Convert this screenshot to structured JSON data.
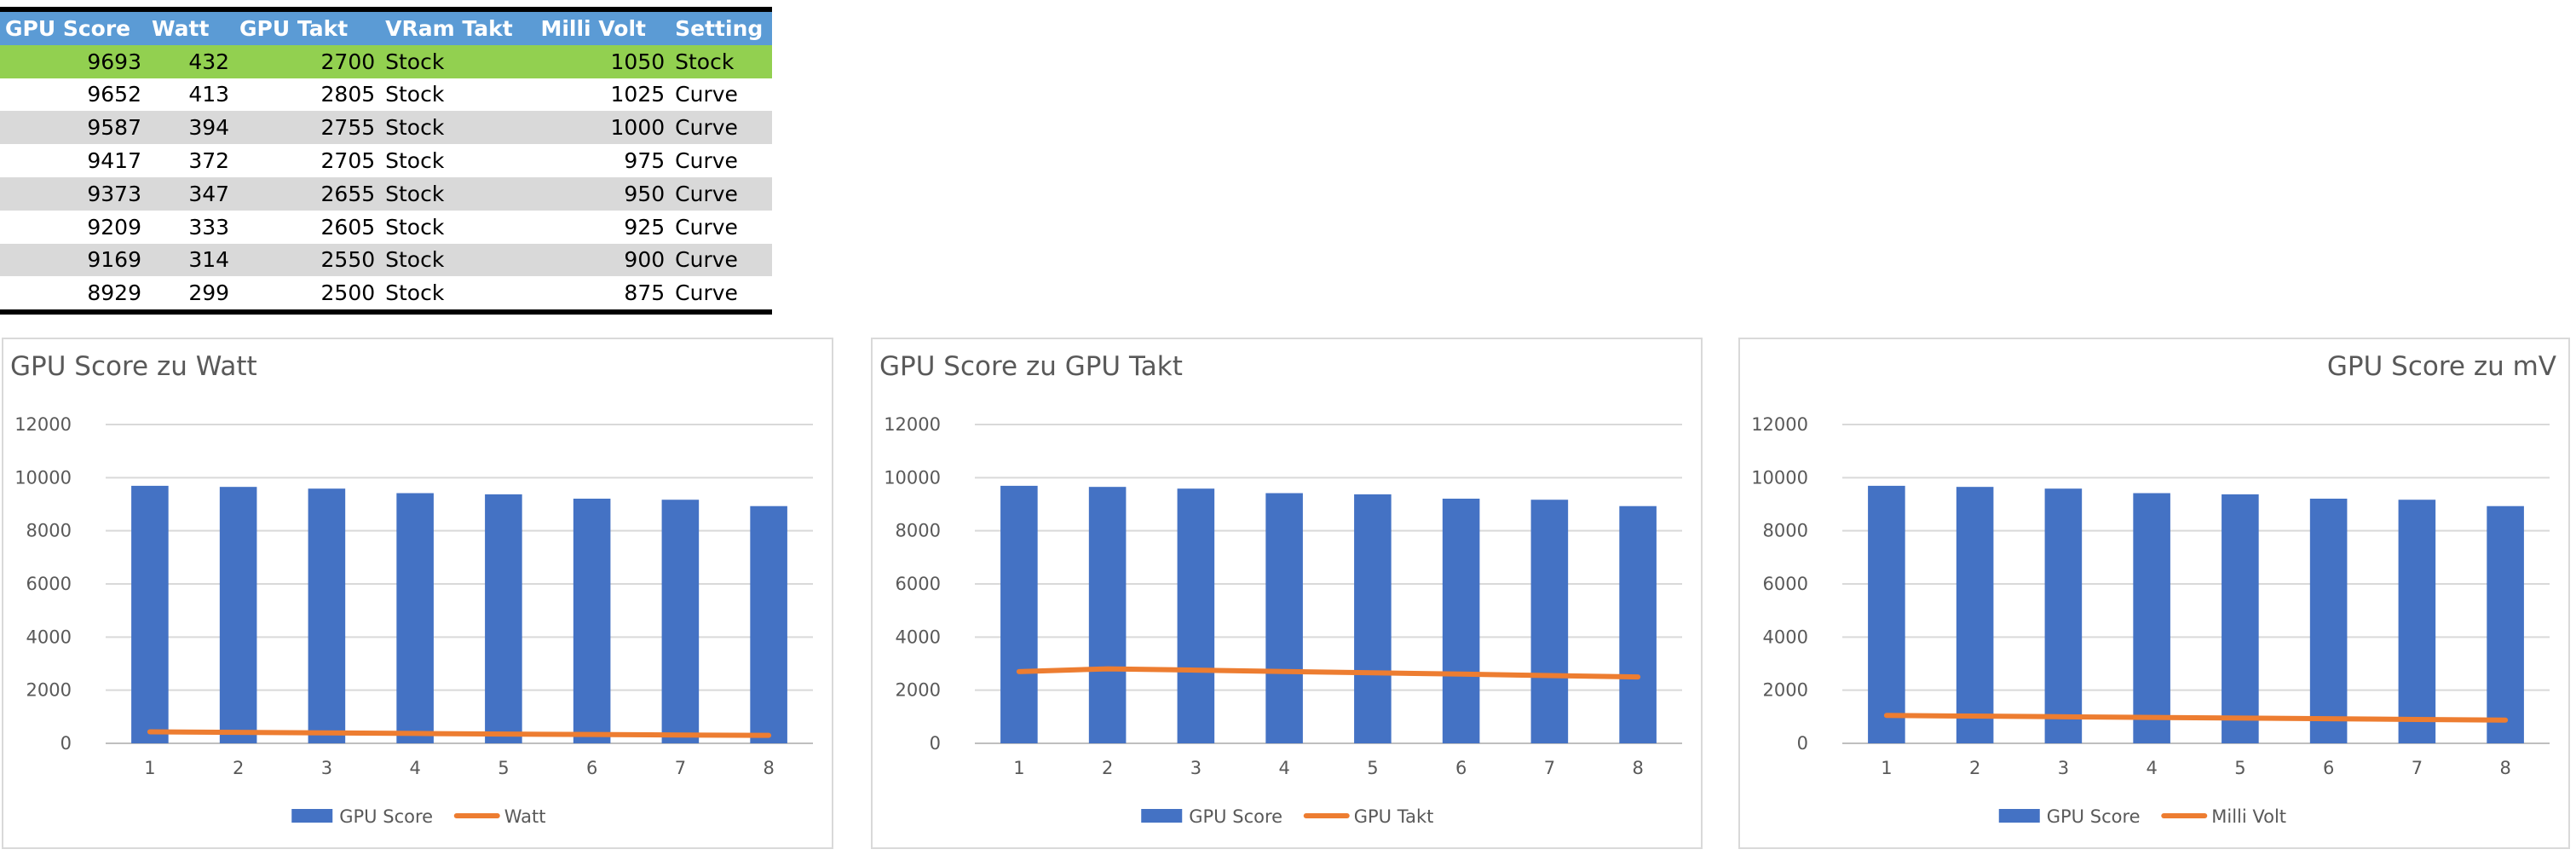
{
  "table": {
    "headers": [
      "GPU Score",
      "Watt",
      "GPU Takt",
      "VRam Takt",
      "Milli Volt",
      "Setting"
    ],
    "rows": [
      [
        "9693",
        "432",
        "2700",
        "Stock",
        "1050",
        "Stock"
      ],
      [
        "9652",
        "413",
        "2805",
        "Stock",
        "1025",
        "Curve"
      ],
      [
        "9587",
        "394",
        "2755",
        "Stock",
        "1000",
        "Curve"
      ],
      [
        "9417",
        "372",
        "2705",
        "Stock",
        "975",
        "Curve"
      ],
      [
        "9373",
        "347",
        "2655",
        "Stock",
        "950",
        "Curve"
      ],
      [
        "9209",
        "333",
        "2605",
        "Stock",
        "925",
        "Curve"
      ],
      [
        "9169",
        "314",
        "2550",
        "Stock",
        "900",
        "Curve"
      ],
      [
        "8929",
        "299",
        "2500",
        "Stock",
        "875",
        "Curve"
      ]
    ],
    "highlight_color": "#92d050",
    "header_color": "#5b9bd5",
    "band_color": "#d9d9d9"
  },
  "chart_data": [
    {
      "type": "bar",
      "title": "GPU Score zu Watt",
      "title_align": "left",
      "categories": [
        "1",
        "2",
        "3",
        "4",
        "5",
        "6",
        "7",
        "8"
      ],
      "series": [
        {
          "name": "GPU Score",
          "type": "bar",
          "color": "#4472c4",
          "values": [
            9693,
            9652,
            9587,
            9417,
            9373,
            9209,
            9169,
            8929
          ]
        },
        {
          "name": "Watt",
          "type": "line",
          "color": "#ed7d31",
          "values": [
            432,
            413,
            394,
            372,
            347,
            333,
            314,
            299
          ]
        }
      ],
      "ylim": [
        0,
        12000
      ],
      "yticks": [
        0,
        2000,
        4000,
        6000,
        8000,
        10000,
        12000
      ],
      "grid": true,
      "legend": "bottom"
    },
    {
      "type": "bar",
      "title": "GPU Score zu GPU Takt",
      "title_align": "left",
      "categories": [
        "1",
        "2",
        "3",
        "4",
        "5",
        "6",
        "7",
        "8"
      ],
      "series": [
        {
          "name": "GPU Score",
          "type": "bar",
          "color": "#4472c4",
          "values": [
            9693,
            9652,
            9587,
            9417,
            9373,
            9209,
            9169,
            8929
          ]
        },
        {
          "name": "GPU Takt",
          "type": "line",
          "color": "#ed7d31",
          "values": [
            2700,
            2805,
            2755,
            2705,
            2655,
            2605,
            2550,
            2500
          ]
        }
      ],
      "ylim": [
        0,
        12000
      ],
      "yticks": [
        0,
        2000,
        4000,
        6000,
        8000,
        10000,
        12000
      ],
      "grid": true,
      "legend": "bottom"
    },
    {
      "type": "bar",
      "title": "GPU Score zu mV",
      "title_align": "right",
      "categories": [
        "1",
        "2",
        "3",
        "4",
        "5",
        "6",
        "7",
        "8"
      ],
      "series": [
        {
          "name": "GPU Score",
          "type": "bar",
          "color": "#4472c4",
          "values": [
            9693,
            9652,
            9587,
            9417,
            9373,
            9209,
            9169,
            8929
          ]
        },
        {
          "name": "Milli Volt",
          "type": "line",
          "color": "#ed7d31",
          "values": [
            1050,
            1025,
            1000,
            975,
            950,
            925,
            900,
            875
          ]
        }
      ],
      "ylim": [
        0,
        12000
      ],
      "yticks": [
        0,
        2000,
        4000,
        6000,
        8000,
        10000,
        12000
      ],
      "grid": true,
      "legend": "bottom"
    }
  ]
}
